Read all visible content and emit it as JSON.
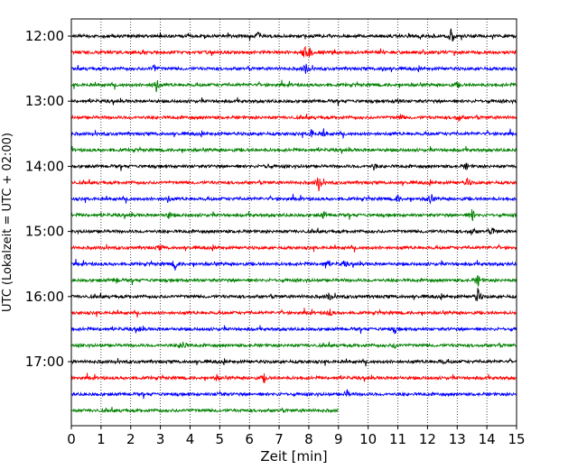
{
  "chart_data": {
    "type": "line",
    "title": "",
    "xlabel": "Zeit  [min]",
    "ylabel": "UTC (Lokalzeit = UTC + 02:00)",
    "xlim": [
      0,
      15
    ],
    "x_ticks": [
      "0",
      "1",
      "2",
      "3",
      "4",
      "5",
      "6",
      "7",
      "8",
      "9",
      "10",
      "11",
      "12",
      "13",
      "14",
      "15"
    ],
    "y_ticks": [
      "12:00",
      "13:00",
      "14:00",
      "15:00",
      "16:00",
      "17:00"
    ],
    "grid": "vertical-dotted",
    "row_interval_min": 15,
    "colors": [
      "#000000",
      "#ff0000",
      "#0000ff",
      "#008000"
    ],
    "rows": [
      {
        "start": "12:00",
        "color": "#000000",
        "end_min": 15,
        "events": [
          [
            12.8,
            1.0
          ],
          [
            6.3,
            0.35
          ]
        ]
      },
      {
        "start": "12:15",
        "color": "#ff0000",
        "end_min": 15,
        "events": [
          [
            7.85,
            0.9
          ],
          [
            8.05,
            0.6
          ]
        ]
      },
      {
        "start": "12:30",
        "color": "#0000ff",
        "end_min": 15,
        "events": [
          [
            2.8,
            0.55
          ],
          [
            7.9,
            0.6
          ],
          [
            10.5,
            0.3
          ]
        ]
      },
      {
        "start": "12:45",
        "color": "#008000",
        "end_min": 15,
        "events": [
          [
            2.85,
            1.1
          ],
          [
            13.0,
            0.3
          ]
        ]
      },
      {
        "start": "13:00",
        "color": "#000000",
        "end_min": 15,
        "events": [
          [
            11.0,
            0.3
          ]
        ]
      },
      {
        "start": "13:15",
        "color": "#ff0000",
        "end_min": 15,
        "events": [
          [
            13.05,
            0.6
          ],
          [
            11.1,
            0.3
          ]
        ]
      },
      {
        "start": "13:30",
        "color": "#0000ff",
        "end_min": 15,
        "events": [
          [
            8.1,
            0.6
          ],
          [
            8.5,
            0.35
          ]
        ]
      },
      {
        "start": "13:45",
        "color": "#008000",
        "end_min": 15,
        "events": []
      },
      {
        "start": "14:00",
        "color": "#000000",
        "end_min": 15,
        "events": [
          [
            6.6,
            0.35
          ],
          [
            10.2,
            0.4
          ],
          [
            13.3,
            0.35
          ]
        ]
      },
      {
        "start": "14:15",
        "color": "#ff0000",
        "end_min": 15,
        "events": [
          [
            8.35,
            1.2
          ],
          [
            13.35,
            0.5
          ]
        ]
      },
      {
        "start": "14:30",
        "color": "#0000ff",
        "end_min": 15,
        "events": [
          [
            3.25,
            0.4
          ],
          [
            12.1,
            0.7
          ],
          [
            11.0,
            0.4
          ]
        ]
      },
      {
        "start": "14:45",
        "color": "#008000",
        "end_min": 15,
        "events": [
          [
            13.5,
            0.8
          ],
          [
            8.5,
            0.45
          ],
          [
            3.3,
            0.35
          ]
        ]
      },
      {
        "start": "15:00",
        "color": "#000000",
        "end_min": 15,
        "events": [
          [
            13.5,
            0.5
          ],
          [
            14.2,
            0.45
          ]
        ]
      },
      {
        "start": "15:15",
        "color": "#ff0000",
        "end_min": 15,
        "events": [
          [
            3.0,
            0.3
          ]
        ]
      },
      {
        "start": "15:30",
        "color": "#0000ff",
        "end_min": 15,
        "events": [
          [
            3.5,
            0.65
          ],
          [
            8.6,
            0.75
          ],
          [
            9.2,
            0.35
          ]
        ]
      },
      {
        "start": "15:45",
        "color": "#008000",
        "end_min": 15,
        "events": [
          [
            13.7,
            0.7
          ],
          [
            1.5,
            0.35
          ]
        ]
      },
      {
        "start": "16:00",
        "color": "#000000",
        "end_min": 15,
        "events": [
          [
            13.7,
            1.0
          ],
          [
            8.7,
            0.45
          ]
        ]
      },
      {
        "start": "16:15",
        "color": "#ff0000",
        "end_min": 15,
        "events": [
          [
            8.7,
            0.45
          ]
        ]
      },
      {
        "start": "16:30",
        "color": "#0000ff",
        "end_min": 15,
        "events": [
          [
            10.9,
            0.4
          ],
          [
            2.3,
            0.3
          ]
        ]
      },
      {
        "start": "16:45",
        "color": "#008000",
        "end_min": 15,
        "events": [
          [
            3.75,
            0.8
          ],
          [
            10.9,
            0.3
          ]
        ]
      },
      {
        "start": "17:00",
        "color": "#000000",
        "end_min": 15,
        "events": [
          [
            12.5,
            0.25
          ]
        ]
      },
      {
        "start": "17:15",
        "color": "#ff0000",
        "end_min": 15,
        "events": [
          [
            6.5,
            0.55
          ],
          [
            4.9,
            0.3
          ]
        ]
      },
      {
        "start": "17:30",
        "color": "#0000ff",
        "end_min": 15,
        "events": [
          [
            9.3,
            0.45
          ],
          [
            5.0,
            0.3
          ]
        ]
      },
      {
        "start": "17:45",
        "color": "#008000",
        "end_min": 9.0,
        "events": []
      }
    ]
  }
}
